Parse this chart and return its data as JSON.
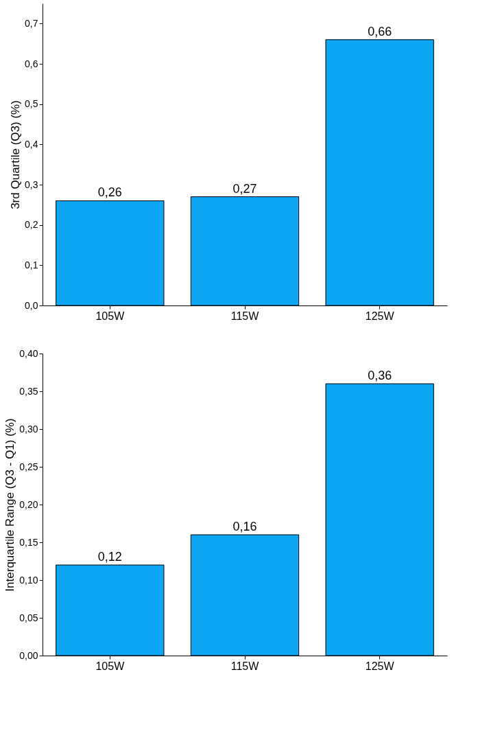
{
  "chart_data": [
    {
      "type": "bar",
      "ylabel": "3rd Quartile (Q3) (%)",
      "categories": [
        "105W",
        "115W",
        "125W"
      ],
      "values": [
        0.26,
        0.27,
        0.66
      ],
      "value_labels": [
        "0,26",
        "0,27",
        "0,66"
      ],
      "color": "#0ea5f5",
      "ylim": [
        0,
        0.75
      ],
      "yticks": [
        {
          "value": 0,
          "label": "0,0"
        },
        {
          "value": 0.1,
          "label": "0,1"
        },
        {
          "value": 0.2,
          "label": "0,2"
        },
        {
          "value": 0.3,
          "label": "0,3"
        },
        {
          "value": 0.4,
          "label": "0,4"
        },
        {
          "value": 0.5,
          "label": "0,5"
        },
        {
          "value": 0.6,
          "label": "0,6"
        },
        {
          "value": 0.7,
          "label": "0,7"
        }
      ]
    },
    {
      "type": "bar",
      "ylabel": "Interquartile Range (Q3 - Q1) (%)",
      "categories": [
        "105W",
        "115W",
        "125W"
      ],
      "values": [
        0.12,
        0.16,
        0.36
      ],
      "value_labels": [
        "0,12",
        "0,16",
        "0,36"
      ],
      "color": "#0ea5f5",
      "ylim": [
        0,
        0.4
      ],
      "yticks": [
        {
          "value": 0,
          "label": "0,00"
        },
        {
          "value": 0.05,
          "label": "0,05"
        },
        {
          "value": 0.1,
          "label": "0,10"
        },
        {
          "value": 0.15,
          "label": "0,15"
        },
        {
          "value": 0.2,
          "label": "0,20"
        },
        {
          "value": 0.25,
          "label": "0,25"
        },
        {
          "value": 0.3,
          "label": "0,30"
        },
        {
          "value": 0.35,
          "label": "0,35"
        },
        {
          "value": 0.4,
          "label": "0,40"
        }
      ]
    }
  ]
}
